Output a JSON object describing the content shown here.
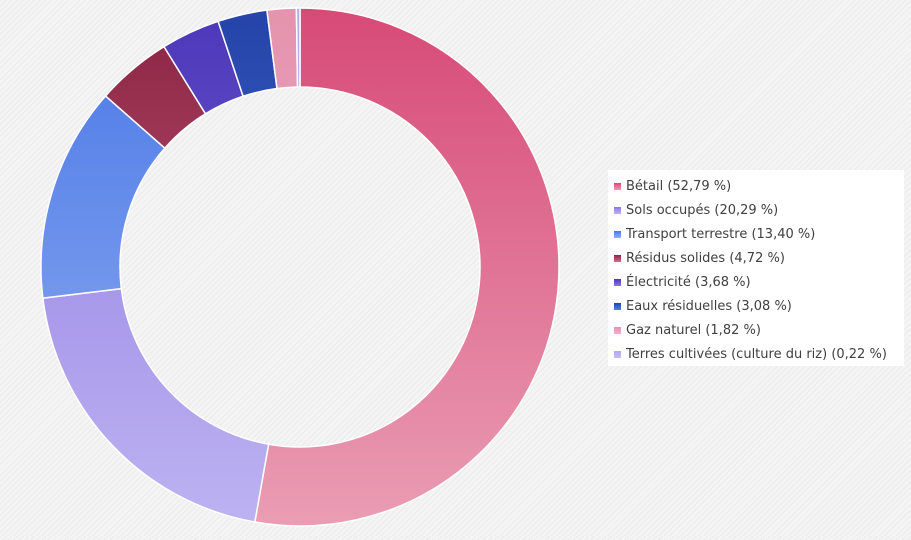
{
  "chart_data": {
    "type": "pie",
    "donut": true,
    "title": "",
    "legend_position": "right",
    "slices": [
      {
        "label": "Bétail (52,79 %)",
        "value": 52.79,
        "color_top": "#d74a78",
        "color_bottom": "#ea9db4"
      },
      {
        "label": "Sols occupés (20,29 %)",
        "value": 20.29,
        "color_top": "#8f77e0",
        "color_bottom": "#bdb3f2"
      },
      {
        "label": "Transport terrestre (13,40 %)",
        "value": 13.4,
        "color_top": "#4a78e6",
        "color_bottom": "#93aff2"
      },
      {
        "label": "Résidus solides (4,72 %)",
        "value": 4.72,
        "color_top": "#8a2343",
        "color_bottom": "#d66a8a"
      },
      {
        "label": "Électricité (3,68 %)",
        "value": 3.68,
        "color_top": "#4b37b8",
        "color_bottom": "#8b75e6"
      },
      {
        "label": "Eaux résiduelles (3,08 %)",
        "value": 3.08,
        "color_top": "#2543a8",
        "color_bottom": "#4e7fe8"
      },
      {
        "label": "Gaz naturel (1,82 %)",
        "value": 1.82,
        "color_top": "#e593ae",
        "color_bottom": "#edb1c4"
      },
      {
        "label": "Terres cultivées (culture du riz) (0,22 %)",
        "value": 0.22,
        "color_top": "#b3aaf0",
        "color_bottom": "#c4bcf4"
      }
    ]
  }
}
